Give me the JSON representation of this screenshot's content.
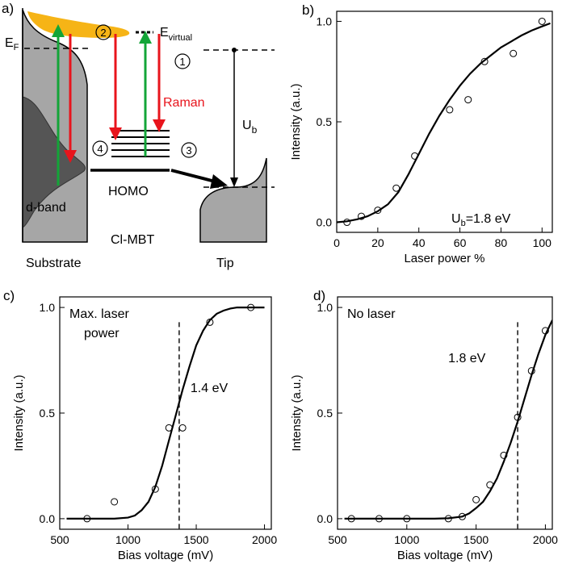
{
  "schematic": {
    "panel_label": "a)",
    "ef_label": "E",
    "ef_sub": "F",
    "evirtual_label": "E",
    "evirtual_sub": "virtual",
    "raman_label": "Raman",
    "ub_label": "U",
    "ub_sub": "b",
    "dband_label": "d-band",
    "homo_label": "HOMO",
    "molecule_label": "Cl-MBT",
    "substrate_label": "Substrate",
    "tip_label": "Tip",
    "step1": "1",
    "step2": "2",
    "step3": "3",
    "step4": "4",
    "colors": {
      "red": "#e8141c",
      "green": "#13a538",
      "orange": "#f6b416",
      "gray": "#a6a6a6",
      "dark_gray": "#555555"
    }
  },
  "chart_data": [
    {
      "panel": "b)",
      "type": "scatter",
      "xlabel": "Laser power %",
      "ylabel": "Intensity (a.u.)",
      "xlim": [
        0,
        105
      ],
      "ylim": [
        -0.05,
        1.05
      ],
      "xticks": [
        0,
        20,
        40,
        60,
        80,
        100
      ],
      "yticks": [
        0.0,
        0.5,
        1.0
      ],
      "annotation_main": "U",
      "annotation_sub": "b",
      "annotation_rest": "=1.8 eV",
      "points": {
        "x": [
          5,
          12,
          20,
          29,
          38,
          55,
          64,
          72,
          86,
          100
        ],
        "y": [
          0.0,
          0.03,
          0.06,
          0.17,
          0.33,
          0.56,
          0.61,
          0.8,
          0.84,
          1.0
        ]
      },
      "fit": {
        "x": [
          0,
          5,
          10,
          15,
          20,
          25,
          30,
          35,
          40,
          45,
          50,
          55,
          60,
          65,
          70,
          75,
          80,
          85,
          90,
          95,
          100,
          104
        ],
        "y": [
          0.0,
          0.005,
          0.015,
          0.03,
          0.055,
          0.09,
          0.15,
          0.24,
          0.34,
          0.44,
          0.53,
          0.61,
          0.68,
          0.74,
          0.79,
          0.83,
          0.87,
          0.9,
          0.93,
          0.955,
          0.975,
          0.99
        ]
      }
    },
    {
      "panel": "c)",
      "type": "scatter",
      "xlabel": "Bias voltage (mV)",
      "ylabel": "Intensity (a.u.)",
      "xlim": [
        500,
        2050
      ],
      "ylim": [
        -0.05,
        1.05
      ],
      "xticks": [
        500,
        1000,
        1500,
        2000
      ],
      "yticks": [
        0.0,
        0.5,
        1.0
      ],
      "annotation_line1": "Max. laser",
      "annotation_line2": "power",
      "threshold_label": "1.4 eV",
      "threshold_x": 1375,
      "points": {
        "x": [
          700,
          900,
          1200,
          1300,
          1400,
          1600,
          1900
        ],
        "y": [
          0.0,
          0.08,
          0.14,
          0.43,
          0.43,
          0.93,
          1.0
        ]
      },
      "fit": {
        "x": [
          550,
          700,
          900,
          1000,
          1050,
          1100,
          1150,
          1200,
          1250,
          1300,
          1350,
          1400,
          1450,
          1500,
          1550,
          1600,
          1650,
          1700,
          1750,
          1800,
          1900,
          2000
        ],
        "y": [
          0.0,
          0.0,
          0.0,
          0.005,
          0.015,
          0.04,
          0.08,
          0.15,
          0.25,
          0.37,
          0.49,
          0.61,
          0.72,
          0.82,
          0.89,
          0.94,
          0.97,
          0.985,
          0.995,
          1.0,
          1.0,
          1.0
        ]
      }
    },
    {
      "panel": "d)",
      "type": "scatter",
      "xlabel": "Bias voltage (mV)",
      "ylabel": "Intensity (a.u.)",
      "xlim": [
        500,
        2050
      ],
      "ylim": [
        -0.05,
        1.05
      ],
      "xticks": [
        500,
        1000,
        1500,
        2000
      ],
      "yticks": [
        0.0,
        0.5,
        1.0
      ],
      "annotation_line1": "No laser",
      "threshold_label": "1.8 eV",
      "threshold_x": 1800,
      "points": {
        "x": [
          600,
          800,
          1000,
          1300,
          1400,
          1500,
          1600,
          1700,
          1800,
          1900,
          2000
        ],
        "y": [
          0.0,
          0.0,
          0.0,
          0.0,
          0.01,
          0.09,
          0.16,
          0.3,
          0.48,
          0.7,
          0.89
        ]
      },
      "fit": {
        "x": [
          550,
          800,
          1000,
          1200,
          1300,
          1400,
          1450,
          1500,
          1550,
          1600,
          1650,
          1700,
          1750,
          1800,
          1850,
          1900,
          1950,
          2000,
          2050
        ],
        "y": [
          0.0,
          0.0,
          0.0,
          0.0,
          0.002,
          0.01,
          0.025,
          0.05,
          0.08,
          0.13,
          0.19,
          0.27,
          0.36,
          0.46,
          0.57,
          0.68,
          0.78,
          0.87,
          0.94
        ]
      }
    }
  ]
}
